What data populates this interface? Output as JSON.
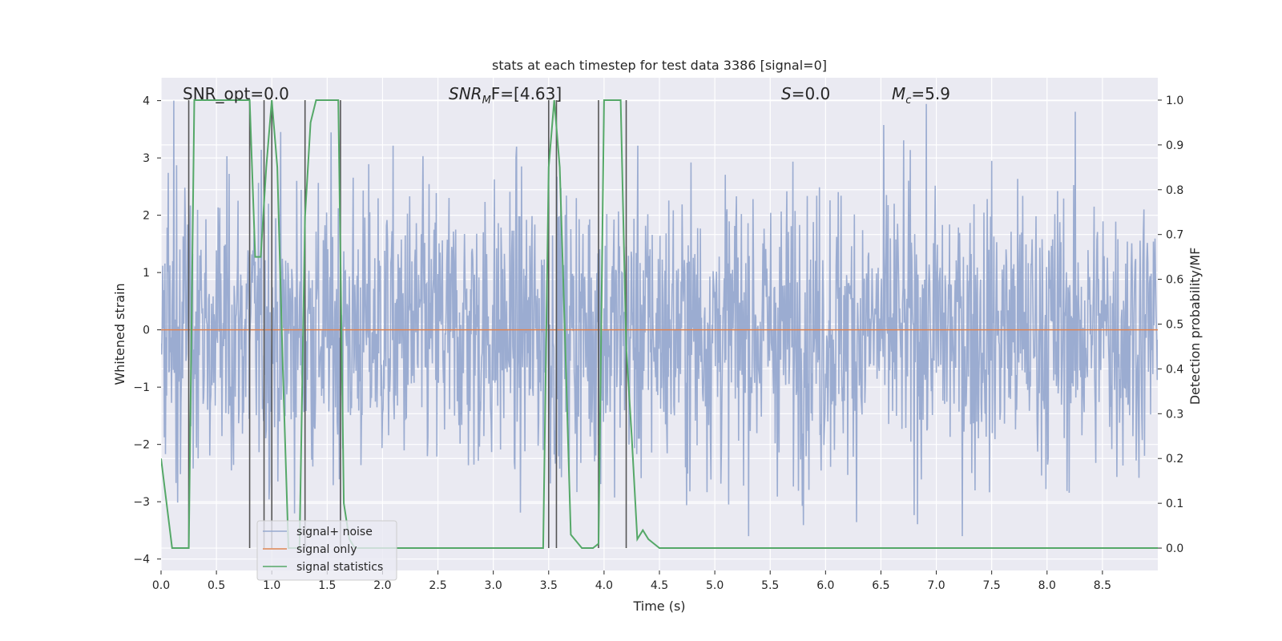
{
  "chart_data": {
    "type": "line",
    "title": "stats at each timestep for test data 3386 [signal=0]",
    "xlabel": "Time (s)",
    "ylabel": "Whitened strain",
    "ylabel_right": "Detection probability/MF",
    "xlim": [
      0,
      9.0
    ],
    "ylim": [
      -4.2,
      4.4
    ],
    "ylim_right": [
      -0.05,
      1.05
    ],
    "x_ticks": [
      0.0,
      0.5,
      1.0,
      1.5,
      2.0,
      2.5,
      3.0,
      3.5,
      4.0,
      4.5,
      5.0,
      5.5,
      6.0,
      6.5,
      7.0,
      7.5,
      8.0,
      8.5
    ],
    "x_tick_labels": [
      "0.0",
      "0.5",
      "1.0",
      "1.5",
      "2.0",
      "2.5",
      "3.0",
      "3.5",
      "4.0",
      "4.5",
      "5.0",
      "5.5",
      "6.0",
      "6.5",
      "7.0",
      "7.5",
      "8.0",
      "8.5"
    ],
    "y_ticks": [
      4,
      3,
      2,
      1,
      0,
      -1,
      -2,
      -3,
      -4
    ],
    "y_tick_labels": [
      "4",
      "3",
      "2",
      "1",
      "0",
      "−1",
      "−2",
      "−3",
      "−4"
    ],
    "y_right_ticks": [
      1.0,
      0.9,
      0.8,
      0.7,
      0.6,
      0.5,
      0.4,
      0.3,
      0.2,
      0.1,
      0.0
    ],
    "y_right_tick_labels": [
      "1.0",
      "0.9",
      "0.8",
      "0.7",
      "0.6",
      "0.5",
      "0.4",
      "0.3",
      "0.2",
      "0.1",
      "0.0"
    ],
    "annotations": {
      "snr_opt": "SNR_opt=0.0",
      "snr_mf_sym": "SNR",
      "snr_mf_sub": "M",
      "snr_mf_rest": "F=[4.63]",
      "s_sym": "S",
      "s_rest": "=0.0",
      "mc_sym": "M",
      "mc_sub": "c",
      "mc_rest": "=5.9"
    },
    "legend": {
      "placement": "lower-left",
      "entries": [
        "signal+ noise",
        "signal only",
        "signal statistics"
      ]
    },
    "colors": {
      "noise": "#97a9cf",
      "signal_only": "#dd8452",
      "statistics": "#55a868",
      "vlines": "#555555",
      "background": "#eaeaf2",
      "grid": "#ffffff"
    },
    "noise_series": {
      "name": "signal+ noise",
      "sample_rate": 200,
      "duration": 9.0,
      "amplitude_rms": 1.25,
      "peak_max": 4.0,
      "peak_min": -3.6
    },
    "signal_only": {
      "name": "signal only",
      "x": [
        0.0,
        9.0
      ],
      "y": [
        0.0,
        0.0
      ]
    },
    "statistics_series": {
      "name": "signal statistics",
      "x": [
        0.0,
        0.05,
        0.1,
        0.15,
        0.2,
        0.25,
        0.3,
        0.5,
        0.6,
        0.75,
        0.8,
        0.85,
        0.9,
        0.95,
        1.0,
        1.05,
        1.1,
        1.15,
        1.2,
        1.25,
        1.3,
        1.35,
        1.4,
        1.55,
        1.6,
        1.65,
        1.7,
        1.75,
        2.5,
        3.0,
        3.4,
        3.45,
        3.5,
        3.55,
        3.6,
        3.65,
        3.7,
        3.8,
        3.9,
        3.95,
        4.0,
        4.15,
        4.2,
        4.25,
        4.3,
        4.35,
        4.4,
        4.45,
        4.5,
        9.0
      ],
      "y": [
        0.2,
        0.1,
        0.0,
        0.0,
        0.0,
        0.0,
        1.0,
        1.0,
        1.0,
        1.0,
        1.0,
        0.65,
        0.65,
        0.85,
        1.0,
        0.85,
        0.4,
        0.0,
        0.0,
        0.0,
        0.74,
        0.95,
        1.0,
        1.0,
        1.0,
        0.1,
        0.02,
        0.0,
        0.0,
        0.0,
        0.0,
        0.0,
        0.85,
        1.0,
        0.85,
        0.45,
        0.03,
        0.0,
        0.0,
        0.01,
        1.0,
        1.0,
        0.45,
        0.25,
        0.02,
        0.04,
        0.02,
        0.01,
        0.0,
        0.0
      ]
    },
    "detection_vlines": {
      "x": [
        0.25,
        0.8,
        0.93,
        1.0,
        1.3,
        1.62,
        3.5,
        3.57,
        3.95,
        4.2
      ]
    }
  }
}
